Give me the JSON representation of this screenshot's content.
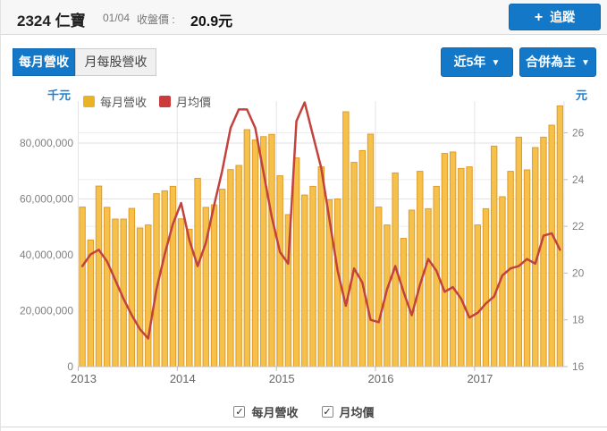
{
  "header": {
    "stock_id": "2324",
    "stock_name": "仁寶",
    "date": "01/04",
    "price_label": "收盤價 :",
    "price": "20.9元",
    "follow_label": "追蹤",
    "plus_icon": "+"
  },
  "toolbar": {
    "tabs": [
      {
        "label": "每月營收",
        "active": true
      },
      {
        "label": "月每股營收",
        "active": false
      }
    ],
    "filters": [
      {
        "label": "近5年"
      },
      {
        "label": "合併為主"
      }
    ],
    "caret": "▼"
  },
  "chart_data": {
    "type": "bar",
    "title": "",
    "left_axis": {
      "label": "千元",
      "ticks": [
        "0",
        "20,000,000",
        "40,000,000",
        "60,000,000",
        "80,000,000"
      ],
      "min": 0,
      "max": 96000000,
      "tick_interval": 20000000
    },
    "right_axis": {
      "label": "元",
      "ticks": [
        "16",
        "18",
        "20",
        "22",
        "24",
        "26"
      ],
      "min": 16,
      "max": 27.4,
      "tick_interval": 2
    },
    "x_axis": {
      "categories": [
        "2013",
        "2014",
        "2015",
        "2016",
        "2017"
      ],
      "months_per_year": 12,
      "last_year_months": 11
    },
    "legend": [
      {
        "name": "每月營收",
        "color": "#e9b227",
        "type": "bar"
      },
      {
        "name": "月均價",
        "color": "#cc3b3b",
        "type": "line"
      }
    ],
    "grid": true,
    "legend_position": "top-left",
    "series": [
      {
        "name": "每月營收",
        "type": "column",
        "axis": "left",
        "unit": "千元",
        "fill": "#f6c14a",
        "border": "#e09b28",
        "values": [
          57100000,
          45300000,
          64600000,
          57000000,
          52800000,
          52800000,
          56600000,
          49600000,
          50700000,
          61900000,
          62900000,
          64500000,
          52900000,
          49200000,
          67400000,
          57000000,
          57900000,
          63500000,
          70500000,
          72000000,
          84800000,
          81100000,
          82300000,
          83100000,
          68300000,
          54400000,
          74700000,
          61400000,
          64500000,
          71500000,
          59700000,
          60000000,
          91200000,
          73100000,
          77300000,
          83200000,
          57100000,
          50700000,
          69300000,
          45900000,
          56000000,
          69900000,
          56500000,
          64500000,
          76300000,
          76800000,
          70900000,
          71500000,
          50700000,
          56500000,
          78900000,
          60800000,
          69900000,
          82100000,
          70400000,
          78400000,
          82100000,
          86400000,
          93300000
        ]
      },
      {
        "name": "月均價",
        "type": "line",
        "axis": "right",
        "unit": "元",
        "color": "#c2423e",
        "values": [
          20.3,
          20.8,
          21.0,
          20.5,
          19.7,
          18.9,
          18.2,
          17.6,
          17.2,
          19.3,
          20.8,
          22.1,
          23.0,
          21.4,
          20.3,
          21.3,
          22.9,
          24.4,
          26.2,
          27.0,
          27.0,
          26.2,
          24.3,
          22.4,
          20.9,
          20.4,
          26.5,
          27.3,
          25.9,
          24.5,
          22.3,
          20.1,
          18.6,
          20.2,
          19.6,
          18.0,
          17.9,
          19.3,
          20.3,
          19.2,
          18.2,
          19.5,
          20.6,
          20.1,
          19.2,
          19.4,
          18.9,
          18.1,
          18.3,
          18.7,
          19.0,
          19.9,
          20.2,
          20.3,
          20.6,
          20.4,
          21.6,
          21.7,
          21.0
        ]
      }
    ]
  },
  "footer": {
    "checkboxes": [
      {
        "label": "每月營收",
        "checked": true
      },
      {
        "label": "月均價",
        "checked": true
      }
    ],
    "check_mark": "✓"
  },
  "colors": {
    "accent_blue": "#1478c8",
    "unit_blue": "#1d7fd4",
    "bar_fill": "#f6c14a",
    "bar_border": "#e09b28",
    "line_red": "#c2423e"
  }
}
